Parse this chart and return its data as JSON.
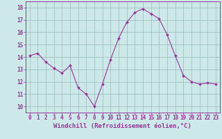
{
  "x": [
    0,
    1,
    2,
    3,
    4,
    5,
    6,
    7,
    8,
    9,
    10,
    11,
    12,
    13,
    14,
    15,
    16,
    17,
    18,
    19,
    20,
    21,
    22,
    23
  ],
  "y": [
    14.1,
    14.3,
    13.6,
    13.1,
    12.7,
    13.3,
    11.5,
    11.0,
    10.0,
    11.8,
    13.8,
    15.5,
    16.8,
    17.6,
    17.9,
    17.5,
    17.1,
    15.8,
    14.1,
    12.5,
    12.0,
    11.8,
    11.9,
    11.8
  ],
  "line_color": "#993399",
  "marker": "D",
  "marker_size": 2.0,
  "bg_color": "#cce8e8",
  "grid_color": "#99bbbb",
  "xlabel": "Windchill (Refroidissement éolien,°C)",
  "xlabel_color": "#993399",
  "tick_color": "#993399",
  "ylim": [
    9.5,
    18.5
  ],
  "xlim": [
    -0.5,
    23.5
  ],
  "yticks": [
    10,
    11,
    12,
    13,
    14,
    15,
    16,
    17,
    18
  ],
  "xticks": [
    0,
    1,
    2,
    3,
    4,
    5,
    6,
    7,
    8,
    9,
    10,
    11,
    12,
    13,
    14,
    15,
    16,
    17,
    18,
    19,
    20,
    21,
    22,
    23
  ],
  "font_size_xlabel": 6.5,
  "font_size_ticks": 5.5,
  "linewidth": 0.8
}
